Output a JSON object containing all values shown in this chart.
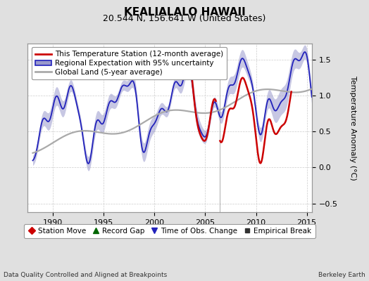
{
  "title": "KEALIALALO HAWAII",
  "subtitle": "20.544 N, 156.641 W (United States)",
  "ylabel": "Temperature Anomaly (°C)",
  "xlabel_left": "Data Quality Controlled and Aligned at Breakpoints",
  "xlabel_right": "Berkeley Earth",
  "xlim": [
    1987.5,
    2015.5
  ],
  "ylim": [
    -0.62,
    1.72
  ],
  "yticks": [
    -0.5,
    0,
    0.5,
    1.0,
    1.5
  ],
  "xticks": [
    1990,
    1995,
    2000,
    2005,
    2010,
    2015
  ],
  "legend1_entries": [
    "This Temperature Station (12-month average)",
    "Regional Expectation with 95% uncertainty",
    "Global Land (5-year average)"
  ],
  "legend2_entries": [
    "Station Move",
    "Record Gap",
    "Time of Obs. Change",
    "Empirical Break"
  ],
  "bg_color": "#e0e0e0",
  "plot_bg_color": "#ffffff",
  "blue_line_color": "#2222bb",
  "blue_fill_color": "#9999cc",
  "red_line_color": "#cc0000",
  "gray_line_color": "#aaaaaa",
  "vert_line_color": "#888888",
  "vert_line_x": 2006.4,
  "green_marker_x": 2005.9,
  "red_seg1_start": 2003.1,
  "red_seg1_end": 2006.05,
  "red_seg2_start": 2006.45,
  "red_seg2_end": 2013.5,
  "title_fontsize": 11,
  "subtitle_fontsize": 9,
  "tick_fontsize": 8,
  "legend_fontsize": 7.5,
  "ylabel_fontsize": 8
}
